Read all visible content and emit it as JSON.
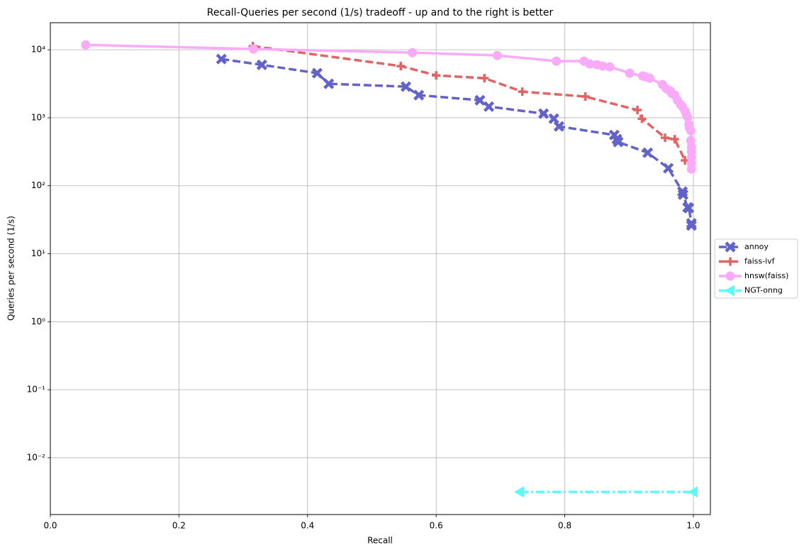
{
  "chart_data": {
    "type": "line",
    "title": "Recall-Queries per second (1/s) tradeoff - up and to the right is better",
    "x_label": "Recall",
    "y_label": "Queries per second (1/s)",
    "log_y": true,
    "grid": true,
    "legend": "right",
    "xlim": [
      0,
      1.0265
    ],
    "ylim": [
      0.00146,
      25000
    ],
    "xticks": [
      {
        "value": 0,
        "label": "0.0"
      },
      0.2,
      0.4,
      0.6,
      0.8,
      {
        "value": 1,
        "label": "1.0"
      }
    ],
    "yticks": [
      {
        "value": 0.01,
        "label": "10⁻²"
      },
      {
        "value": 0.1,
        "label": "10⁻¹"
      },
      {
        "value": 1,
        "label": "10⁰"
      },
      {
        "value": 10,
        "label": "10¹"
      },
      {
        "value": 100,
        "label": "10²"
      },
      {
        "value": 1000,
        "label": "10³"
      },
      {
        "value": 10000,
        "label": "10⁴"
      }
    ],
    "series": [
      {
        "name": "annoy",
        "color": "#6262c9",
        "marker": "x",
        "linestyle": "dashed",
        "x": [
          0.266,
          0.329,
          0.415,
          0.433,
          0.553,
          0.573,
          0.668,
          0.682,
          0.767,
          0.783,
          0.791,
          0.877,
          0.881,
          0.883,
          0.929,
          0.961,
          0.983,
          0.984,
          0.991,
          0.993,
          0.997,
          0.997
        ],
        "values": [
          7300,
          6000,
          4530,
          3160,
          2870,
          2150,
          1810,
          1460,
          1150,
          970,
          746,
          558,
          484,
          440,
          306,
          181,
          82,
          74,
          48,
          47,
          28,
          26
        ]
      },
      {
        "name": "faiss-ivf",
        "color": "#e06464",
        "marker": "plus",
        "linestyle": "dashed",
        "x": [
          0.315,
          0.545,
          0.6,
          0.675,
          0.734,
          0.832,
          0.913,
          0.92,
          0.956,
          0.971,
          0.987
        ],
        "values": [
          11300,
          5750,
          4200,
          3820,
          2420,
          2050,
          1300,
          970,
          508,
          484,
          236
        ]
      },
      {
        "name": "hnsw(faiss)",
        "color": "#f9aaf9",
        "marker": "circle",
        "linestyle": "solid",
        "x": [
          0.055,
          0.316,
          0.563,
          0.695,
          0.787,
          0.83,
          0.839,
          0.85,
          0.859,
          0.87,
          0.901,
          0.921,
          0.925,
          0.932,
          0.952,
          0.958,
          0.964,
          0.967,
          0.971,
          0.975,
          0.98,
          0.983,
          0.987,
          0.989,
          0.991,
          0.993,
          0.994,
          0.996,
          0.996,
          0.997,
          0.997,
          0.997,
          0.997,
          0.997
        ],
        "values": [
          11800,
          10250,
          9080,
          8250,
          6810,
          6810,
          6180,
          6040,
          5750,
          5610,
          4530,
          4110,
          4020,
          3820,
          3080,
          2670,
          2480,
          2260,
          2150,
          1820,
          1570,
          1460,
          1260,
          1120,
          1020,
          800,
          710,
          646,
          461,
          372,
          314,
          259,
          214,
          176
        ]
      },
      {
        "name": "NGT-onng",
        "color": "#5cf9f9",
        "marker": "triangle-left",
        "linestyle": "dashdot",
        "x": [
          0.73,
          1.0
        ],
        "values": [
          0.00314,
          0.00314
        ]
      }
    ]
  }
}
